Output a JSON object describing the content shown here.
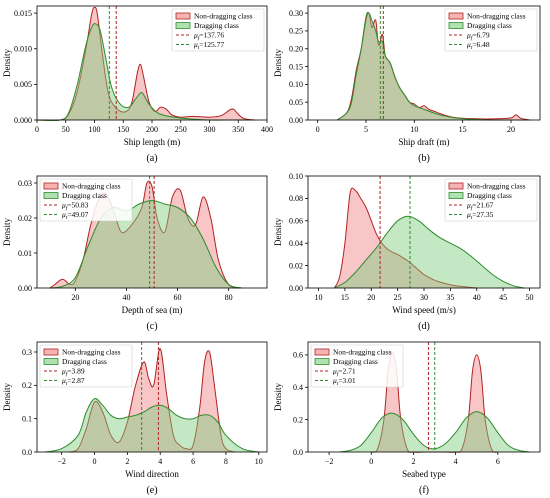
{
  "colors": {
    "non_dragging_line": "#b22222",
    "non_dragging_fill": "#f08080",
    "dragging_line": "#2e8b2e",
    "dragging_fill": "#7ccd7c"
  },
  "chart_data": [
    {
      "type": "area",
      "caption": "(a)",
      "xlabel": "Ship length (m)",
      "ylabel": "Density",
      "xlim": [
        0,
        400
      ],
      "ylim": [
        0,
        0.016
      ],
      "xticks": [
        0,
        50,
        100,
        150,
        200,
        250,
        300,
        350,
        400
      ],
      "yticks": [
        0.0,
        0.005,
        0.01,
        0.015
      ],
      "ytick_labels": [
        "0.000",
        "0.005",
        "0.010",
        "0.015"
      ],
      "xtick_labels": [
        "0",
        "50",
        "100",
        "150",
        "200",
        "250",
        "300",
        "350",
        "400"
      ],
      "legend": {
        "position": "top-right",
        "entries": [
          "Non-dragging class",
          "Dragging class",
          "μ_f=137.76",
          "μ_t=125.77"
        ]
      },
      "means": {
        "non_dragging": 137.76,
        "dragging": 125.77
      },
      "series": [
        {
          "name": "Non-dragging class",
          "x": [
            0,
            40,
            55,
            70,
            85,
            95,
            100,
            105,
            115,
            125,
            140,
            155,
            165,
            175,
            180,
            185,
            195,
            205,
            215,
            225,
            235,
            250,
            270,
            300,
            320,
            335,
            342,
            350,
            360,
            380
          ],
          "y": [
            0,
            0,
            0.0008,
            0.004,
            0.01,
            0.0148,
            0.0158,
            0.0148,
            0.0085,
            0.0035,
            0.0015,
            0.0012,
            0.0025,
            0.0068,
            0.0078,
            0.0062,
            0.0025,
            0.0012,
            0.0018,
            0.0015,
            0.0007,
            0.0004,
            0.0005,
            0.0004,
            0.0006,
            0.0014,
            0.0015,
            0.0008,
            0.0002,
            0
          ]
        },
        {
          "name": "Dragging class",
          "x": [
            0,
            40,
            55,
            70,
            85,
            95,
            102,
            110,
            120,
            130,
            145,
            160,
            170,
            180,
            185,
            195,
            210,
            230,
            260,
            300,
            340,
            380
          ],
          "y": [
            0,
            0,
            0.001,
            0.005,
            0.0105,
            0.013,
            0.0135,
            0.0125,
            0.0085,
            0.0045,
            0.0022,
            0.0018,
            0.0028,
            0.0038,
            0.0036,
            0.0022,
            0.001,
            0.0005,
            0.0002,
            0,
            0,
            0
          ]
        }
      ]
    },
    {
      "type": "area",
      "caption": "(b)",
      "xlabel": "Ship draft (m)",
      "ylabel": "Density",
      "xlim": [
        -1,
        23
      ],
      "ylim": [
        0,
        0.32
      ],
      "xticks": [
        0,
        5,
        10,
        15,
        20
      ],
      "xtick_labels": [
        "0",
        "5",
        "10",
        "15",
        "20"
      ],
      "yticks": [
        0.0,
        0.05,
        0.1,
        0.15,
        0.2,
        0.25,
        0.3
      ],
      "ytick_labels": [
        "0.00",
        "0.05",
        "0.10",
        "0.15",
        "0.20",
        "0.25",
        "0.30"
      ],
      "legend": {
        "position": "top-right",
        "entries": [
          "Non-dragging class",
          "Dragging class",
          "μ_f=6.79",
          "μ_t=6.48"
        ]
      },
      "means": {
        "non_dragging": 6.79,
        "dragging": 6.48
      },
      "series": [
        {
          "name": "Non-dragging class",
          "x": [
            2,
            3,
            3.5,
            4,
            4.5,
            5,
            5.3,
            5.6,
            6,
            6.3,
            6.7,
            7,
            7.5,
            8,
            8.5,
            9,
            9.5,
            10,
            10.5,
            11,
            11.5,
            12,
            13,
            14,
            15,
            16,
            18,
            20,
            20.5,
            21,
            22
          ],
          "y": [
            0,
            0.02,
            0.06,
            0.14,
            0.2,
            0.28,
            0.3,
            0.26,
            0.28,
            0.21,
            0.24,
            0.18,
            0.16,
            0.12,
            0.09,
            0.07,
            0.05,
            0.045,
            0.035,
            0.04,
            0.03,
            0.025,
            0.015,
            0.008,
            0.005,
            0.004,
            0.003,
            0.006,
            0.015,
            0.005,
            0
          ]
        },
        {
          "name": "Dragging class",
          "x": [
            2,
            3,
            3.5,
            4,
            4.5,
            5,
            5.3,
            5.6,
            6,
            6.3,
            6.7,
            7,
            7.5,
            8,
            8.5,
            9,
            9.5,
            10,
            11,
            12,
            13,
            14,
            15,
            16,
            18,
            20,
            22
          ],
          "y": [
            0,
            0.02,
            0.05,
            0.13,
            0.2,
            0.29,
            0.3,
            0.28,
            0.25,
            0.22,
            0.22,
            0.18,
            0.16,
            0.12,
            0.09,
            0.07,
            0.05,
            0.04,
            0.03,
            0.02,
            0.012,
            0.007,
            0.004,
            0.002,
            0,
            0,
            0
          ]
        }
      ]
    },
    {
      "type": "area",
      "caption": "(c)",
      "xlabel": "Depth of sea (m)",
      "ylabel": "Density",
      "xlim": [
        5,
        95
      ],
      "ylim": [
        0,
        0.032
      ],
      "xticks": [
        20,
        40,
        60,
        80
      ],
      "xtick_labels": [
        "20",
        "40",
        "60",
        "80"
      ],
      "yticks": [
        0.0,
        0.01,
        0.02,
        0.03
      ],
      "ytick_labels": [
        "0.00",
        "0.01",
        "0.02",
        "0.03"
      ],
      "legend": {
        "position": "top-left",
        "entries": [
          "Non-dragging class",
          "Dragging class",
          "μ_f=50.83",
          "μ_t=49.07"
        ]
      },
      "means": {
        "non_dragging": 50.83,
        "dragging": 49.07
      },
      "series": [
        {
          "name": "Non-dragging class",
          "x": [
            10,
            12,
            15,
            18,
            20,
            23,
            26,
            29,
            32,
            35,
            38,
            42,
            46,
            48,
            50,
            52,
            55,
            58,
            61,
            64,
            67,
            70,
            73,
            76,
            80,
            85
          ],
          "y": [
            0,
            0.001,
            0.0025,
            0.001,
            0.002,
            0.008,
            0.018,
            0.025,
            0.027,
            0.022,
            0.016,
            0.018,
            0.023,
            0.03,
            0.029,
            0.02,
            0.016,
            0.026,
            0.028,
            0.02,
            0.018,
            0.026,
            0.02,
            0.008,
            0.001,
            0
          ]
        },
        {
          "name": "Dragging class",
          "x": [
            10,
            15,
            20,
            25,
            30,
            35,
            40,
            45,
            50,
            55,
            60,
            65,
            70,
            75,
            80,
            85
          ],
          "y": [
            0,
            0.0005,
            0.003,
            0.012,
            0.02,
            0.023,
            0.022,
            0.024,
            0.025,
            0.024,
            0.023,
            0.02,
            0.014,
            0.006,
            0.001,
            0
          ]
        }
      ]
    },
    {
      "type": "area",
      "caption": "(d)",
      "xlabel": "Wind speed (m/s)",
      "ylabel": "Density",
      "xlim": [
        8,
        52
      ],
      "ylim": [
        0,
        0.1
      ],
      "xticks": [
        10,
        15,
        20,
        25,
        30,
        35,
        40,
        45,
        50
      ],
      "xtick_labels": [
        "10",
        "15",
        "20",
        "25",
        "30",
        "35",
        "40",
        "45",
        "50"
      ],
      "yticks": [
        0.0,
        0.02,
        0.04,
        0.06,
        0.08,
        0.1
      ],
      "ytick_labels": [
        "0.00",
        "0.02",
        "0.04",
        "0.06",
        "0.08",
        "0.10"
      ],
      "legend": {
        "position": "top-right",
        "entries": [
          "Non-dragging class",
          "Dragging class",
          "μ_f=21.67",
          "μ_t=27.35"
        ]
      },
      "means": {
        "non_dragging": 21.67,
        "dragging": 27.35
      },
      "series": [
        {
          "name": "Non-dragging class",
          "x": [
            13,
            14,
            15,
            16,
            17,
            18,
            19,
            20,
            21,
            22,
            23,
            24,
            25,
            26,
            27,
            28,
            29,
            30,
            32,
            34,
            36,
            38,
            40
          ],
          "y": [
            0,
            0.01,
            0.04,
            0.085,
            0.087,
            0.08,
            0.072,
            0.06,
            0.048,
            0.04,
            0.035,
            0.032,
            0.03,
            0.027,
            0.024,
            0.02,
            0.016,
            0.012,
            0.007,
            0.004,
            0.002,
            0.001,
            0
          ]
        },
        {
          "name": "Dragging class",
          "x": [
            13,
            15,
            17,
            19,
            21,
            23,
            25,
            27,
            29,
            31,
            33,
            35,
            37,
            39,
            41,
            43,
            45,
            47,
            49
          ],
          "y": [
            0,
            0.005,
            0.014,
            0.025,
            0.036,
            0.049,
            0.06,
            0.064,
            0.06,
            0.052,
            0.045,
            0.04,
            0.035,
            0.028,
            0.02,
            0.012,
            0.006,
            0.002,
            0
          ]
        }
      ]
    },
    {
      "type": "area",
      "caption": "(e)",
      "xlabel": "Wind direction",
      "ylabel": "Density",
      "xlim": [
        -3.5,
        10.5
      ],
      "ylim": [
        0,
        0.33
      ],
      "xticks": [
        -2,
        0,
        2,
        4,
        6,
        8,
        10
      ],
      "xtick_labels": [
        "−2",
        "0",
        "2",
        "4",
        "6",
        "8",
        "10"
      ],
      "yticks": [
        0.0,
        0.1,
        0.2,
        0.3
      ],
      "ytick_labels": [
        "0.0",
        "0.1",
        "0.2",
        "0.3"
      ],
      "legend": {
        "position": "top-left",
        "entries": [
          "Non-dragging class",
          "Dragging class",
          "μ_f=3.89",
          "μ_t=2.87"
        ]
      },
      "means": {
        "non_dragging": 3.89,
        "dragging": 2.87
      },
      "series": [
        {
          "name": "Non-dragging class",
          "x": [
            -1.5,
            -1,
            -0.5,
            0,
            0.5,
            1,
            1.5,
            2,
            2.5,
            3,
            3.3,
            3.6,
            4,
            4.4,
            4.8,
            5.2,
            5.6,
            6,
            6.4,
            6.7,
            7,
            7.3,
            7.7,
            8,
            8.5
          ],
          "y": [
            0,
            0.01,
            0.07,
            0.15,
            0.12,
            0.05,
            0.03,
            0.09,
            0.2,
            0.27,
            0.22,
            0.2,
            0.31,
            0.17,
            0.05,
            0.02,
            0.01,
            0.02,
            0.13,
            0.27,
            0.3,
            0.2,
            0.05,
            0.01,
            0
          ]
        },
        {
          "name": "Dragging class",
          "x": [
            -3,
            -2,
            -1,
            -0.5,
            0,
            0.5,
            1,
            1.5,
            2,
            2.5,
            3,
            3.5,
            4,
            4.5,
            5,
            5.5,
            6,
            6.5,
            7,
            7.5,
            8,
            9,
            10
          ],
          "y": [
            0,
            0.01,
            0.05,
            0.12,
            0.16,
            0.14,
            0.11,
            0.1,
            0.105,
            0.11,
            0.12,
            0.135,
            0.14,
            0.13,
            0.11,
            0.1,
            0.1,
            0.11,
            0.11,
            0.09,
            0.05,
            0.01,
            0
          ]
        }
      ]
    },
    {
      "type": "area",
      "caption": "(f)",
      "xlabel": "Seabed type",
      "ylabel": "Density",
      "xlim": [
        -3,
        8
      ],
      "ylim": [
        0,
        0.68
      ],
      "xticks": [
        -2,
        0,
        2,
        4,
        6
      ],
      "xtick_labels": [
        "−2",
        "0",
        "2",
        "4",
        "6"
      ],
      "yticks": [
        0.0,
        0.2,
        0.4,
        0.6
      ],
      "ytick_labels": [
        "0.0",
        "0.2",
        "0.4",
        "0.6"
      ],
      "legend": {
        "position": "top-left",
        "entries": [
          "Non-dragging class",
          "Dragging class",
          "μ_f=2.71",
          "μ_t=3.01"
        ]
      },
      "means": {
        "non_dragging": 2.71,
        "dragging": 3.01
      },
      "series": [
        {
          "name": "Non-dragging class",
          "x": [
            0,
            0.3,
            0.6,
            0.8,
            1,
            1.2,
            1.4,
            1.7,
            2,
            2.5,
            3,
            3.5,
            4,
            4.3,
            4.6,
            4.8,
            5,
            5.2,
            5.4,
            5.7,
            6
          ],
          "y": [
            0,
            0.02,
            0.2,
            0.5,
            0.62,
            0.5,
            0.2,
            0.02,
            0,
            0,
            0,
            0,
            0,
            0.02,
            0.2,
            0.5,
            0.6,
            0.5,
            0.2,
            0.02,
            0
          ]
        },
        {
          "name": "Dragging class",
          "x": [
            -1.5,
            -1,
            -0.5,
            0,
            0.5,
            1,
            1.5,
            2,
            2.5,
            3,
            3.5,
            4,
            4.5,
            5,
            5.5,
            6,
            6.5,
            7,
            7.5
          ],
          "y": [
            0,
            0.01,
            0.04,
            0.12,
            0.21,
            0.24,
            0.2,
            0.11,
            0.04,
            0.02,
            0.05,
            0.12,
            0.21,
            0.25,
            0.21,
            0.12,
            0.04,
            0.01,
            0
          ]
        }
      ]
    }
  ]
}
